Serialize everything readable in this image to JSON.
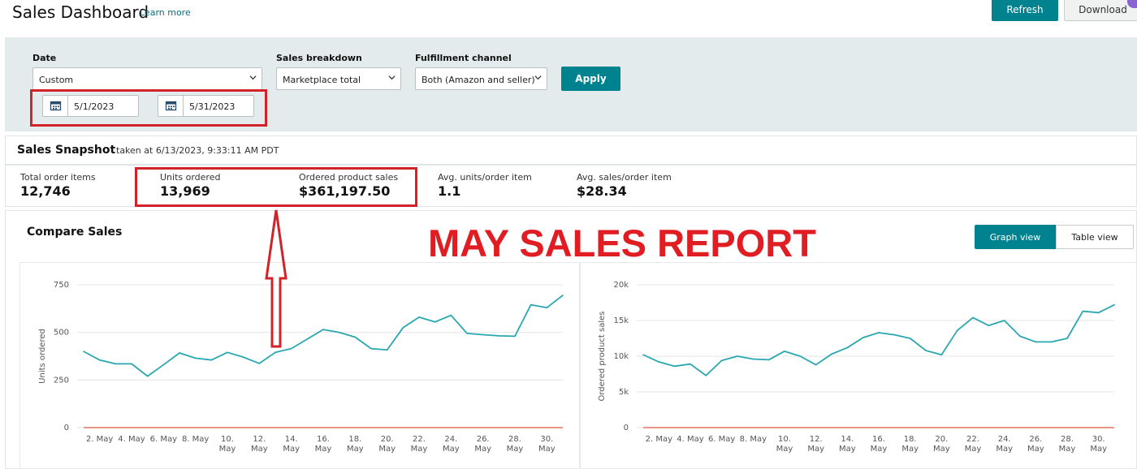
{
  "header": {
    "title": "Sales Dashboard",
    "learn_more": "Learn more",
    "refresh": "Refresh",
    "download": "Download"
  },
  "filters": {
    "date_label": "Date",
    "date_value": "Custom",
    "start_date": "5/1/2023",
    "end_date": "5/31/2023",
    "breakdown_label": "Sales breakdown",
    "breakdown_value": "Marketplace total",
    "fulfillment_label": "Fulfillment channel",
    "fulfillment_value": "Both (Amazon and seller)",
    "apply": "Apply"
  },
  "snapshot": {
    "title": "Sales Snapshot",
    "taken_at": "taken at 6/13/2023, 9:33:11 AM PDT",
    "metrics": [
      {
        "label": "Total order items",
        "value": "12,746"
      },
      {
        "label": "Units ordered",
        "value": "13,969"
      },
      {
        "label": "Ordered product sales",
        "value": "$361,197.50"
      },
      {
        "label": "Avg. units/order item",
        "value": "1.1"
      },
      {
        "label": "Avg. sales/order item",
        "value": "$28.34"
      }
    ]
  },
  "compare": {
    "title": "Compare Sales",
    "graph_view": "Graph view",
    "table_view": "Table view"
  },
  "annotation": {
    "text": "MAY SALES REPORT",
    "color": "#e11d24"
  },
  "colors": {
    "accent": "#00838f",
    "line": "#2aa7b0",
    "baseline": "#e2735a",
    "highlight": "#d2232a"
  },
  "chart_data": [
    {
      "type": "line",
      "ylabel": "Units ordered",
      "ylim": [
        0,
        750
      ],
      "yticks": [
        0,
        250,
        500,
        750
      ],
      "ytick_labels": [
        "0",
        "250",
        "500",
        "750"
      ],
      "x": [
        1,
        2,
        3,
        4,
        5,
        6,
        7,
        8,
        9,
        10,
        11,
        12,
        13,
        14,
        15,
        16,
        17,
        18,
        19,
        20,
        21,
        22,
        23,
        24,
        25,
        26,
        27,
        28,
        29,
        30,
        31
      ],
      "xticks": [
        2,
        4,
        6,
        8,
        10,
        12,
        14,
        16,
        18,
        20,
        22,
        24,
        26,
        28,
        30
      ],
      "xtick_labels": [
        "2. May",
        "4. May",
        "6. May",
        "8. May",
        "10. May",
        "12. May",
        "14. May",
        "16. May",
        "18. May",
        "20. May",
        "22. May",
        "24. May",
        "26. May",
        "28. May",
        "30. May"
      ],
      "series": [
        {
          "values": [
            400,
            355,
            335,
            335,
            270,
            330,
            392,
            365,
            355,
            395,
            370,
            337,
            395,
            415,
            465,
            515,
            500,
            475,
            415,
            408,
            525,
            580,
            555,
            590,
            495,
            488,
            482,
            480,
            645,
            630,
            695
          ]
        },
        {
          "values": [
            0,
            0,
            0,
            0,
            0,
            0,
            0,
            0,
            0,
            0,
            0,
            0,
            0,
            0,
            0,
            0,
            0,
            0,
            0,
            0,
            0,
            0,
            0,
            0,
            0,
            0,
            0,
            0,
            0,
            0,
            0
          ]
        }
      ]
    },
    {
      "type": "line",
      "ylabel": "Ordered product sales",
      "ylim": [
        0,
        20000
      ],
      "yticks": [
        0,
        5000,
        10000,
        15000,
        20000
      ],
      "ytick_labels": [
        "0",
        "5k",
        "10k",
        "15k",
        "20k"
      ],
      "x": [
        1,
        2,
        3,
        4,
        5,
        6,
        7,
        8,
        9,
        10,
        11,
        12,
        13,
        14,
        15,
        16,
        17,
        18,
        19,
        20,
        21,
        22,
        23,
        24,
        25,
        26,
        27,
        28,
        29,
        30,
        31
      ],
      "xticks": [
        2,
        4,
        6,
        8,
        10,
        12,
        14,
        16,
        18,
        20,
        22,
        24,
        26,
        28,
        30
      ],
      "xtick_labels": [
        "2. May",
        "4. May",
        "6. May",
        "8. May",
        "10. May",
        "12. May",
        "14. May",
        "16. May",
        "18. May",
        "20. May",
        "22. May",
        "24. May",
        "26. May",
        "28. May",
        "30. May"
      ],
      "series": [
        {
          "values": [
            10200,
            9200,
            8600,
            8900,
            7300,
            9400,
            10000,
            9600,
            9500,
            10700,
            10000,
            8800,
            10300,
            11200,
            12600,
            13300,
            13000,
            12500,
            10800,
            10200,
            13600,
            15400,
            14300,
            15000,
            12800,
            12000,
            12000,
            12500,
            16300,
            16100,
            17200
          ]
        },
        {
          "values": [
            0,
            0,
            0,
            0,
            0,
            0,
            0,
            0,
            0,
            0,
            0,
            0,
            0,
            0,
            0,
            0,
            0,
            0,
            0,
            0,
            0,
            0,
            0,
            0,
            0,
            0,
            0,
            0,
            0,
            0,
            0
          ]
        }
      ]
    }
  ]
}
